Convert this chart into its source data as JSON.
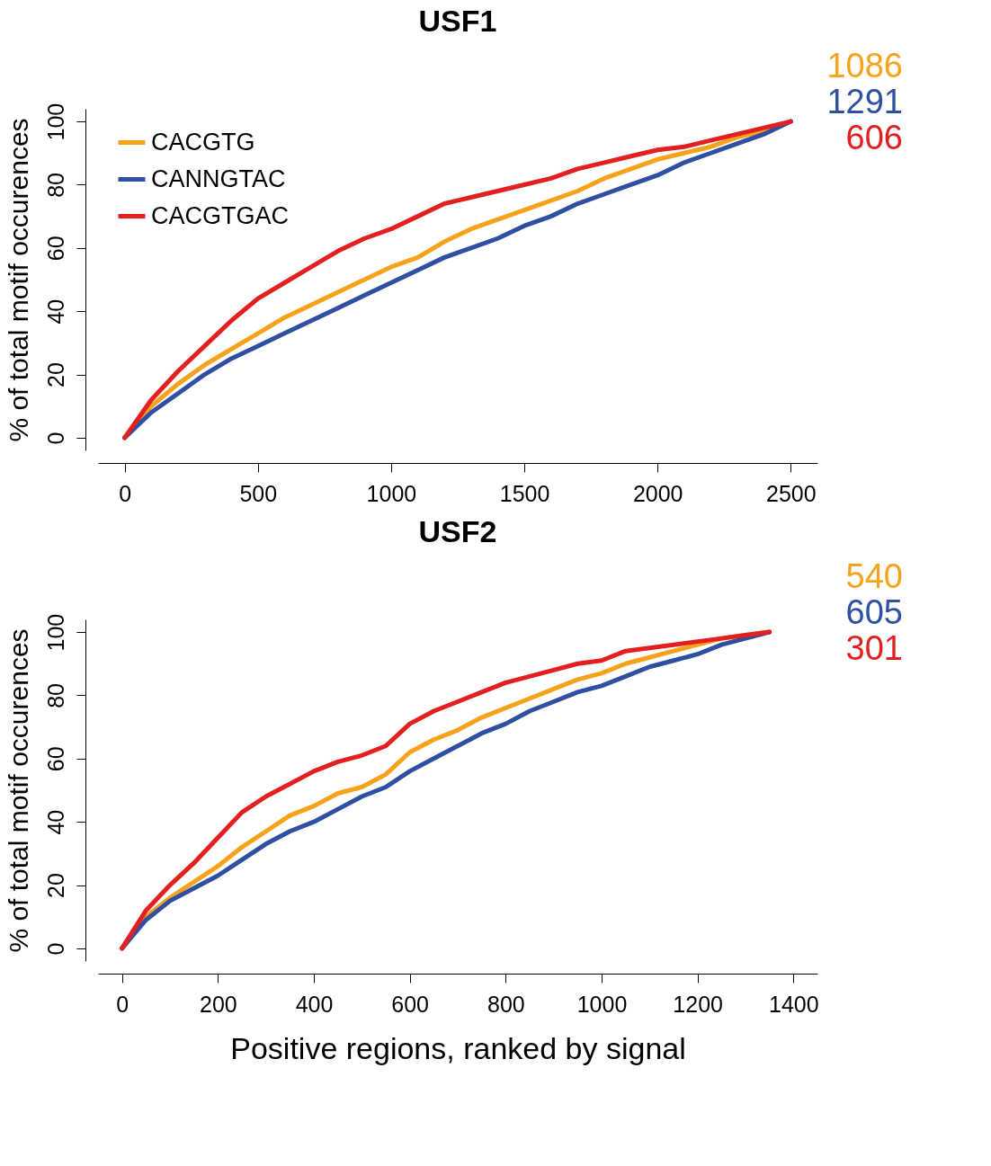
{
  "chart_data": [
    {
      "type": "line",
      "title": "USF1",
      "ylabel": "% of total motif occurences",
      "x": [
        0,
        100,
        200,
        300,
        400,
        500,
        600,
        700,
        800,
        900,
        1000,
        1100,
        1200,
        1300,
        1400,
        1500,
        1600,
        1700,
        1800,
        1900,
        2000,
        2100,
        2200,
        2300,
        2400,
        2500
      ],
      "xlim": [
        -100,
        2600
      ],
      "xticks": [
        0,
        500,
        1000,
        1500,
        2000,
        2500
      ],
      "ylim": [
        -4,
        104
      ],
      "yticks": [
        0,
        20,
        40,
        60,
        80,
        100
      ],
      "grid": false,
      "legend": "top left",
      "line_style": "solid",
      "series": [
        {
          "name": "CACGTG",
          "color": "#f7a21b",
          "values": [
            0,
            10,
            17,
            23,
            28,
            33,
            38,
            42,
            46,
            50,
            54,
            57,
            62,
            66,
            69,
            72,
            75,
            78,
            82,
            85,
            88,
            90,
            92,
            95,
            97,
            100
          ]
        },
        {
          "name": "CANNGTAC",
          "color": "#2e4fa2",
          "values": [
            0,
            8,
            14,
            20,
            25,
            29,
            33,
            37,
            41,
            45,
            49,
            53,
            57,
            60,
            63,
            67,
            70,
            74,
            77,
            80,
            83,
            87,
            90,
            93,
            96,
            100
          ]
        },
        {
          "name": "CACGTGAC",
          "color": "#e41f1f",
          "values": [
            0,
            12,
            21,
            29,
            37,
            44,
            49,
            54,
            59,
            63,
            66,
            70,
            74,
            76,
            78,
            80,
            82,
            85,
            87,
            89,
            91,
            92,
            94,
            96,
            98,
            100
          ]
        }
      ],
      "annotations": [
        "1086",
        "1291",
        "606"
      ]
    },
    {
      "type": "line",
      "title": "USF2",
      "xlabel": "Positive regions, ranked by signal",
      "ylabel": "% of total motif occurences",
      "x": [
        0,
        50,
        100,
        150,
        200,
        250,
        300,
        350,
        400,
        450,
        500,
        550,
        600,
        650,
        700,
        750,
        800,
        850,
        900,
        950,
        1000,
        1050,
        1100,
        1150,
        1200,
        1250,
        1300,
        1350
      ],
      "xlim": [
        -50,
        1450
      ],
      "xticks": [
        0,
        200,
        400,
        600,
        800,
        1000,
        1200,
        1400
      ],
      "ylim": [
        -4,
        104
      ],
      "yticks": [
        0,
        20,
        40,
        60,
        80,
        100
      ],
      "grid": false,
      "legend": false,
      "line_style": "solid",
      "series": [
        {
          "color": "#f7a21b",
          "values": [
            0,
            10,
            16,
            21,
            26,
            32,
            37,
            42,
            45,
            49,
            51,
            55,
            62,
            66,
            69,
            73,
            76,
            79,
            82,
            85,
            87,
            90,
            92,
            94,
            96,
            98,
            99,
            100
          ]
        },
        {
          "color": "#2e4fa2",
          "values": [
            0,
            9,
            15,
            19,
            23,
            28,
            33,
            37,
            40,
            44,
            48,
            51,
            56,
            60,
            64,
            68,
            71,
            75,
            78,
            81,
            83,
            86,
            89,
            91,
            93,
            96,
            98,
            100
          ]
        },
        {
          "color": "#e41f1f",
          "values": [
            0,
            12,
            20,
            27,
            35,
            43,
            48,
            52,
            56,
            59,
            61,
            64,
            71,
            75,
            78,
            81,
            84,
            86,
            88,
            90,
            91,
            94,
            95,
            96,
            97,
            98,
            99,
            100
          ]
        }
      ],
      "annotations": [
        "540",
        "605",
        "301"
      ]
    }
  ]
}
